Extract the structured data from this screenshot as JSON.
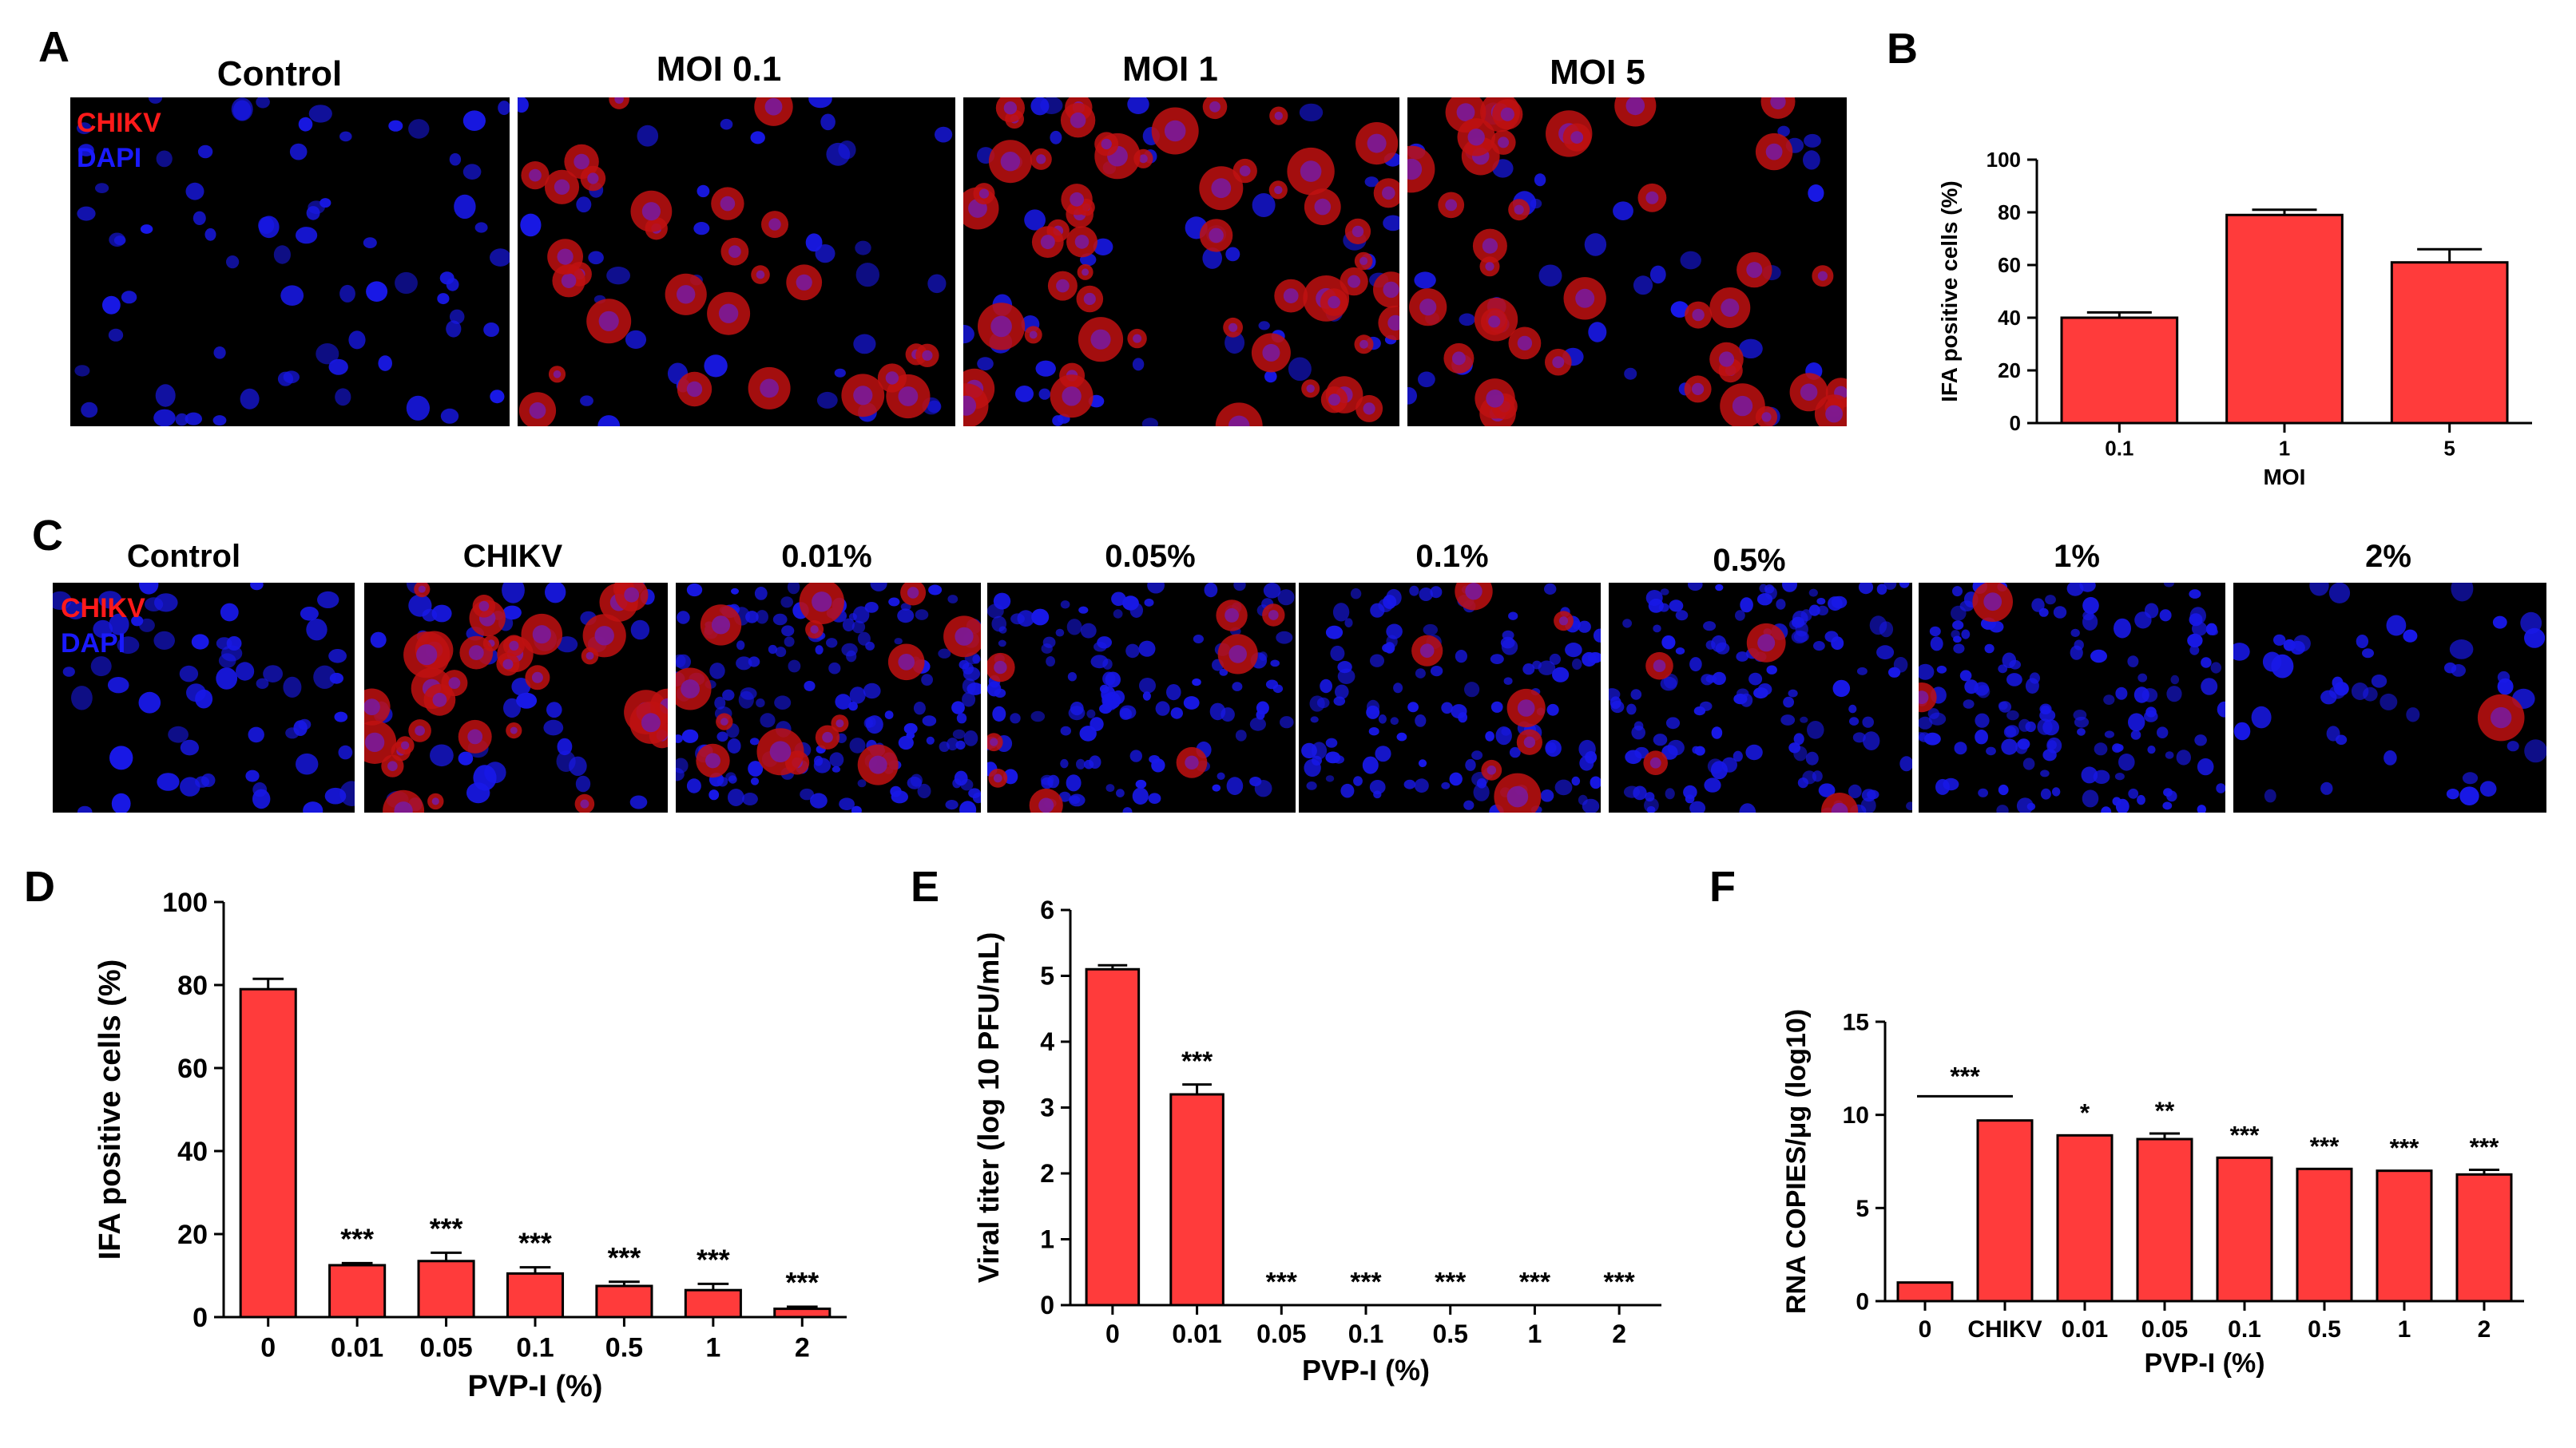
{
  "panel_labels": {
    "A": "A",
    "B": "B",
    "C": "C",
    "D": "D",
    "E": "E",
    "F": "F"
  },
  "colors": {
    "bar": "#ff3b3b",
    "bar_stroke": "#000000",
    "chikv": "#ff1a1a",
    "dapi": "#1a1aff",
    "background": "#000000"
  },
  "panel_a": {
    "legend": {
      "chikv": "CHIKV",
      "dapi": "DAPI"
    },
    "images": [
      {
        "title": "Control",
        "red": 0,
        "blue": 70
      },
      {
        "title": "MOI 0.1",
        "red": 28,
        "blue": 35
      },
      {
        "title": "MOI 1",
        "red": 55,
        "blue": 45
      },
      {
        "title": "MOI 5",
        "red": 40,
        "blue": 35
      }
    ]
  },
  "panel_c": {
    "legend": {
      "chikv": "CHIKV",
      "dapi": "DAPI"
    },
    "images": [
      {
        "title": "Control",
        "red": 0,
        "blue": 60
      },
      {
        "title": "CHIKV",
        "red": 35,
        "blue": 40
      },
      {
        "title": "0.01%",
        "red": 14,
        "blue": 160
      },
      {
        "title": "0.05%",
        "red": 8,
        "blue": 120
      },
      {
        "title": "0.1%",
        "red": 7,
        "blue": 120
      },
      {
        "title": "0.5%",
        "red": 4,
        "blue": 130
      },
      {
        "title": "1%",
        "red": 2,
        "blue": 140
      },
      {
        "title": "2%",
        "red": 1,
        "blue": 45
      }
    ]
  },
  "chart_data": [
    {
      "id": "B",
      "type": "bar",
      "categories": [
        "0.1",
        "1",
        "5"
      ],
      "values": [
        40,
        79,
        61
      ],
      "errors": [
        2,
        2,
        5
      ],
      "xlabel": "MOI",
      "ylabel": "IFA positive cells (%)",
      "ylim": [
        0,
        100
      ],
      "yticks": [
        0,
        20,
        40,
        60,
        80,
        100
      ]
    },
    {
      "id": "D",
      "type": "bar",
      "categories": [
        "0",
        "0.01",
        "0.05",
        "0.1",
        "0.5",
        "1",
        "2"
      ],
      "values": [
        79,
        12.5,
        13.5,
        10.5,
        7.5,
        6.5,
        2
      ],
      "errors": [
        2.5,
        0.5,
        2,
        1.5,
        1,
        1.5,
        0.5
      ],
      "annotations": [
        "",
        "***",
        "***",
        "***",
        "***",
        "***",
        "***"
      ],
      "xlabel": "PVP-I (%)",
      "ylabel": "IFA positive cells (%)",
      "ylim": [
        0,
        100
      ],
      "yticks": [
        0,
        20,
        40,
        60,
        80,
        100
      ]
    },
    {
      "id": "E",
      "type": "bar",
      "categories": [
        "0",
        "0.01",
        "0.05",
        "0.1",
        "0.5",
        "1",
        "2"
      ],
      "values": [
        5.1,
        3.2,
        0,
        0,
        0,
        0,
        0
      ],
      "errors": [
        0.06,
        0.15,
        0,
        0,
        0,
        0,
        0
      ],
      "annotations": [
        "",
        "***",
        "***",
        "***",
        "***",
        "***",
        "***"
      ],
      "xlabel": "PVP-I (%)",
      "ylabel": "Viral titer (log 10 PFU/mL)",
      "ylim": [
        0,
        6
      ],
      "yticks": [
        0,
        1,
        2,
        3,
        4,
        5,
        6
      ]
    },
    {
      "id": "F",
      "type": "bar",
      "categories": [
        "0",
        "CHIKV",
        "0.01",
        "0.05",
        "0.1",
        "0.5",
        "1",
        "2"
      ],
      "values": [
        1,
        9.7,
        8.9,
        8.7,
        7.7,
        7.1,
        7.0,
        6.8
      ],
      "errors": [
        0,
        0,
        0,
        0.3,
        0,
        0,
        0,
        0.25
      ],
      "annotations": [
        "",
        "",
        "*",
        "**",
        "***",
        "***",
        "***",
        "***"
      ],
      "bracket_annotation": "***",
      "xlabel": "PVP-I (%)",
      "ylabel": "RNA COPIES/μg (log10)",
      "ylim": [
        0,
        15
      ],
      "yticks": [
        0,
        5,
        10,
        15
      ]
    }
  ]
}
